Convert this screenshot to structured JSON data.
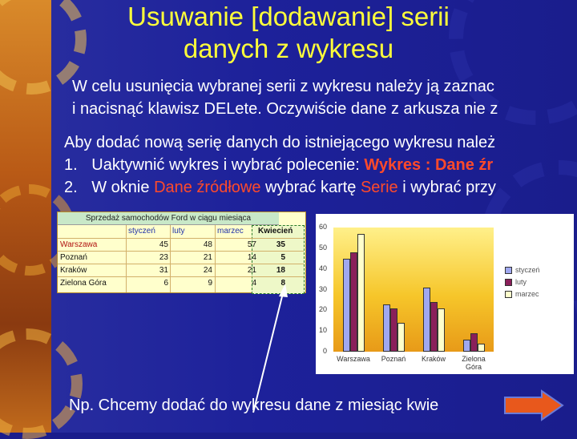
{
  "slide": {
    "title_line1": "Usuwanie [dodawanie] serii",
    "title_line2": "danych z wykresu",
    "para1_line1": "W celu usunięcia wybranej serii z wykresu należy ją zaznac",
    "para1_line2": "i nacisnąć klawisz DELete. Oczywiście dane z arkusza nie z",
    "para2_line1": "Aby dodać nową serię danych do istniejącego wykresu należ",
    "step1_num": "1.",
    "step1_text": "Uaktywnić wykres i wybrać polecenie: ",
    "step1_red": "Wykres : Dane źr",
    "step2_num": "2.",
    "step2_a": "W oknie ",
    "step2_red1": "Dane źródłowe",
    "step2_b": " wybrać kartę ",
    "step2_red2": "Serie",
    "step2_c": " i wybrać przy",
    "bottom_text": "Np. Chcemy dodać do wykresu dane z miesiąc kwie"
  },
  "sheet": {
    "title": "Sprzedaż samochodów Ford w ciągu miesiąca",
    "headers": [
      "styczeń",
      "luty",
      "marzec",
      "Kwiecień"
    ],
    "rows": [
      {
        "label": "Warszawa",
        "values": [
          "45",
          "48",
          "57",
          "35"
        ]
      },
      {
        "label": "Poznań",
        "values": [
          "23",
          "21",
          "14",
          "5"
        ]
      },
      {
        "label": "Kraków",
        "values": [
          "31",
          "24",
          "21",
          "18"
        ]
      },
      {
        "label": "Zielona Góra",
        "values": [
          "6",
          "9",
          "4",
          "8"
        ]
      }
    ]
  },
  "chart_data": {
    "type": "bar",
    "categories": [
      "Warszawa",
      "Poznań",
      "Kraków",
      "Zielona Góra"
    ],
    "series": [
      {
        "name": "styczeń",
        "values": [
          45,
          23,
          31,
          6
        ],
        "color": "#a0a8f0"
      },
      {
        "name": "luty",
        "values": [
          48,
          21,
          24,
          9
        ],
        "color": "#8a1f5a"
      },
      {
        "name": "marzec",
        "values": [
          57,
          14,
          21,
          4
        ],
        "color": "#ffffcc"
      }
    ],
    "ylim": [
      0,
      60
    ],
    "yticks": [
      "60",
      "50",
      "40",
      "30",
      "20",
      "10",
      "0"
    ],
    "legend": "right"
  },
  "colors": {
    "title": "#ffff3a",
    "highlight_text": "#ff4a2a",
    "arrow_button": "#e8581c"
  },
  "icons": {
    "next": "right-arrow-icon"
  }
}
